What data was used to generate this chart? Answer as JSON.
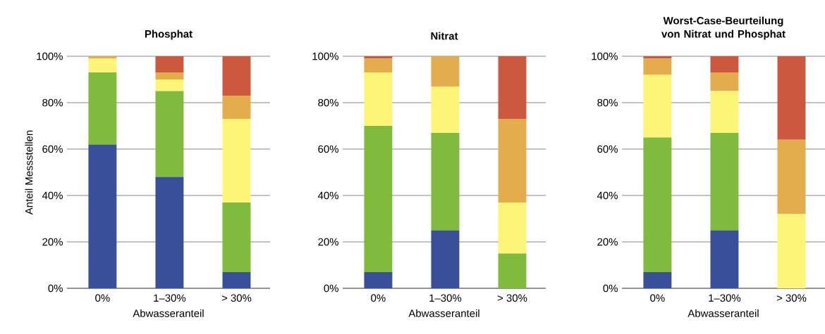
{
  "chart_data": [
    {
      "type": "bar",
      "stacked": true,
      "title": "Phosphat",
      "xlabel": "Abwasseranteil",
      "ylabel": "Anteil Messstellen",
      "categories": [
        "0%",
        "1–30%",
        "> 30%"
      ],
      "grid": "y",
      "ylim": [
        0,
        100
      ],
      "yticks": [
        {
          "value": 0,
          "label": "0%"
        },
        {
          "value": 20,
          "label": "20%"
        },
        {
          "value": 40,
          "label": "40%"
        },
        {
          "value": 60,
          "label": "60%"
        },
        {
          "value": 80,
          "label": "80%"
        },
        {
          "value": 100,
          "label": "100%"
        }
      ],
      "series": [
        {
          "color": "#3a4f9a",
          "values": [
            62,
            48,
            7
          ]
        },
        {
          "color": "#80bb3e",
          "values": [
            31,
            37,
            30
          ]
        },
        {
          "color": "#fcf577",
          "values": [
            6,
            5,
            36
          ]
        },
        {
          "color": "#e3ad4e",
          "values": [
            1,
            3,
            10
          ]
        },
        {
          "color": "#cb583f",
          "values": [
            0,
            7,
            17
          ]
        }
      ]
    },
    {
      "type": "bar",
      "stacked": true,
      "title": "Nitrat",
      "xlabel": "Abwasseranteil",
      "categories": [
        "0%",
        "1–30%",
        "> 30%"
      ],
      "grid": "y",
      "ylim": [
        0,
        100
      ],
      "yticks": [
        {
          "value": 0,
          "label": "0%"
        },
        {
          "value": 20,
          "label": "20%"
        },
        {
          "value": 40,
          "label": "40%"
        },
        {
          "value": 60,
          "label": "60%"
        },
        {
          "value": 80,
          "label": "80%"
        },
        {
          "value": 100,
          "label": "100%"
        }
      ],
      "series": [
        {
          "color": "#3a4f9a",
          "values": [
            7,
            25,
            0
          ]
        },
        {
          "color": "#80bb3e",
          "values": [
            63,
            42,
            15
          ]
        },
        {
          "color": "#fcf577",
          "values": [
            23,
            20,
            22
          ]
        },
        {
          "color": "#e3ad4e",
          "values": [
            6,
            13,
            36
          ]
        },
        {
          "color": "#cb583f",
          "values": [
            1,
            0,
            27
          ]
        }
      ]
    },
    {
      "type": "bar",
      "stacked": true,
      "title": "Worst-Case-Beurteilung von Nitrat und Phosphat",
      "xlabel": "Abwasseranteil",
      "categories": [
        "0%",
        "1–30%",
        "> 30%"
      ],
      "grid": "y",
      "ylim": [
        0,
        100
      ],
      "yticks": [
        {
          "value": 0,
          "label": "0%"
        },
        {
          "value": 20,
          "label": "20%"
        },
        {
          "value": 40,
          "label": "40%"
        },
        {
          "value": 60,
          "label": "60%"
        },
        {
          "value": 80,
          "label": "80%"
        },
        {
          "value": 100,
          "label": "100%"
        }
      ],
      "series": [
        {
          "color": "#3a4f9a",
          "values": [
            7,
            25,
            0
          ]
        },
        {
          "color": "#80bb3e",
          "values": [
            58,
            42,
            0
          ]
        },
        {
          "color": "#fcf577",
          "values": [
            27,
            18,
            32
          ]
        },
        {
          "color": "#e3ad4e",
          "values": [
            7,
            8,
            32
          ]
        },
        {
          "color": "#cb583f",
          "values": [
            1,
            7,
            36
          ]
        }
      ]
    }
  ]
}
